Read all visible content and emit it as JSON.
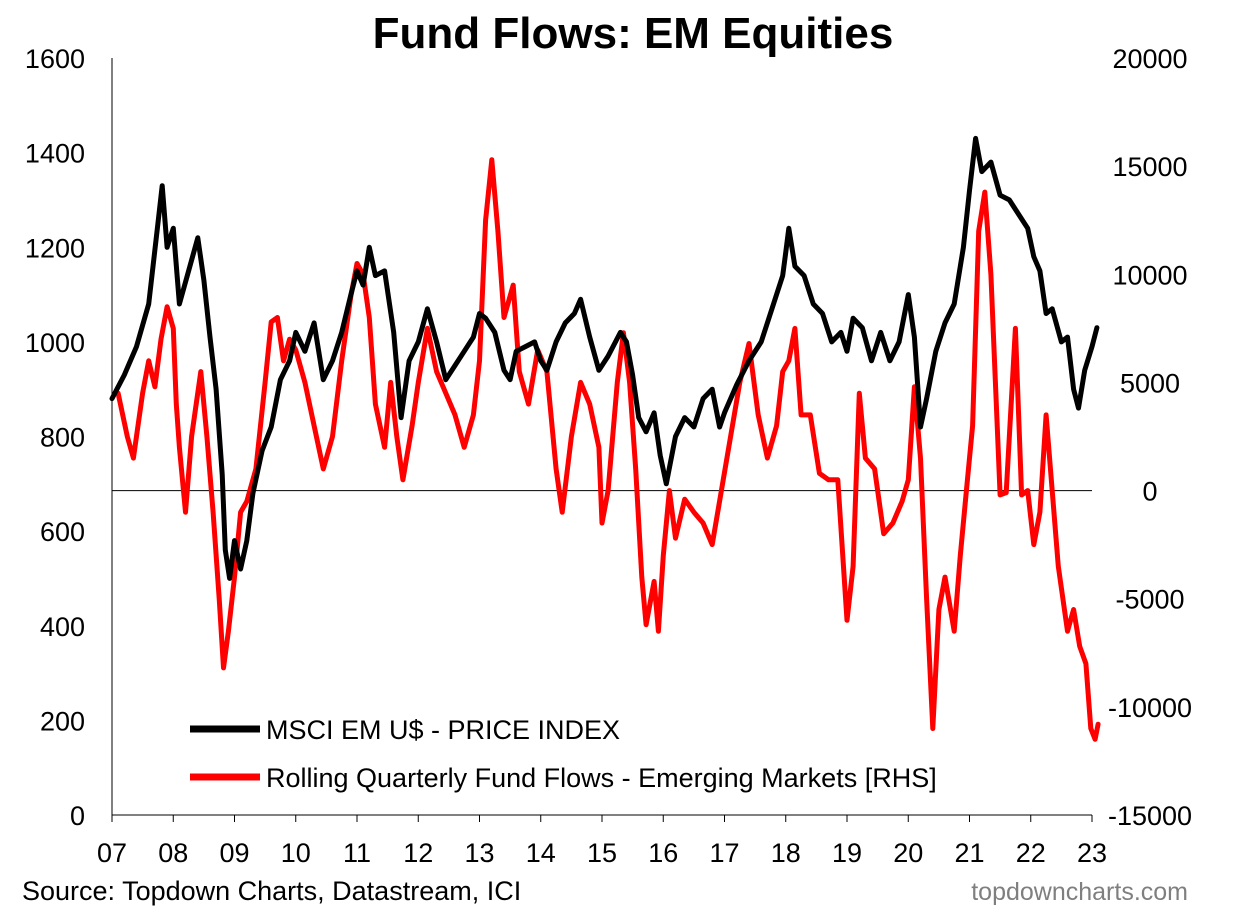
{
  "chart_data": {
    "type": "line",
    "title": "Fund Flows: EM Equities",
    "x_tick_labels": [
      "07",
      "08",
      "09",
      "10",
      "11",
      "12",
      "13",
      "14",
      "15",
      "16",
      "17",
      "18",
      "19",
      "20",
      "21",
      "22",
      "23"
    ],
    "x_range": [
      2007,
      2023
    ],
    "left_axis": {
      "ylim": [
        0,
        1600
      ],
      "ticks": [
        "0",
        "200",
        "400",
        "600",
        "800",
        "1000",
        "1200",
        "1400",
        "1600"
      ]
    },
    "right_axis": {
      "ylim": [
        -15000,
        20000
      ],
      "ticks": [
        "-15000",
        "-10000",
        "-5000",
        "0",
        "5000",
        "10000",
        "15000",
        "20000"
      ]
    },
    "zero_line_rhs": 0,
    "legend": {
      "placement": "bottom-left"
    },
    "series": [
      {
        "name": "MSCI EM U$ - PRICE INDEX",
        "axis": "left",
        "color": "#000000",
        "points": [
          [
            2007.0,
            880
          ],
          [
            2007.2,
            930
          ],
          [
            2007.4,
            990
          ],
          [
            2007.6,
            1080
          ],
          [
            2007.75,
            1250
          ],
          [
            2007.82,
            1330
          ],
          [
            2007.9,
            1200
          ],
          [
            2008.0,
            1240
          ],
          [
            2008.1,
            1080
          ],
          [
            2008.25,
            1150
          ],
          [
            2008.4,
            1220
          ],
          [
            2008.5,
            1130
          ],
          [
            2008.6,
            1010
          ],
          [
            2008.7,
            900
          ],
          [
            2008.8,
            720
          ],
          [
            2008.85,
            560
          ],
          [
            2008.92,
            500
          ],
          [
            2009.0,
            580
          ],
          [
            2009.1,
            520
          ],
          [
            2009.2,
            580
          ],
          [
            2009.3,
            680
          ],
          [
            2009.45,
            770
          ],
          [
            2009.6,
            820
          ],
          [
            2009.75,
            920
          ],
          [
            2009.9,
            960
          ],
          [
            2010.0,
            1020
          ],
          [
            2010.15,
            980
          ],
          [
            2010.3,
            1040
          ],
          [
            2010.45,
            920
          ],
          [
            2010.6,
            960
          ],
          [
            2010.75,
            1020
          ],
          [
            2010.9,
            1100
          ],
          [
            2011.0,
            1150
          ],
          [
            2011.1,
            1120
          ],
          [
            2011.2,
            1200
          ],
          [
            2011.3,
            1140
          ],
          [
            2011.45,
            1150
          ],
          [
            2011.6,
            1020
          ],
          [
            2011.72,
            840
          ],
          [
            2011.85,
            960
          ],
          [
            2012.0,
            1000
          ],
          [
            2012.15,
            1070
          ],
          [
            2012.3,
            1000
          ],
          [
            2012.45,
            920
          ],
          [
            2012.6,
            950
          ],
          [
            2012.75,
            980
          ],
          [
            2012.9,
            1010
          ],
          [
            2013.0,
            1060
          ],
          [
            2013.1,
            1050
          ],
          [
            2013.25,
            1020
          ],
          [
            2013.4,
            940
          ],
          [
            2013.5,
            920
          ],
          [
            2013.6,
            980
          ],
          [
            2013.75,
            990
          ],
          [
            2013.9,
            1000
          ],
          [
            2014.0,
            960
          ],
          [
            2014.1,
            940
          ],
          [
            2014.25,
            1000
          ],
          [
            2014.4,
            1040
          ],
          [
            2014.55,
            1060
          ],
          [
            2014.65,
            1090
          ],
          [
            2014.8,
            1010
          ],
          [
            2014.95,
            940
          ],
          [
            2015.1,
            970
          ],
          [
            2015.3,
            1020
          ],
          [
            2015.4,
            1000
          ],
          [
            2015.5,
            930
          ],
          [
            2015.6,
            840
          ],
          [
            2015.72,
            810
          ],
          [
            2015.85,
            850
          ],
          [
            2015.95,
            760
          ],
          [
            2016.05,
            700
          ],
          [
            2016.2,
            800
          ],
          [
            2016.35,
            840
          ],
          [
            2016.5,
            820
          ],
          [
            2016.65,
            880
          ],
          [
            2016.8,
            900
          ],
          [
            2016.92,
            820
          ],
          [
            2017.0,
            850
          ],
          [
            2017.2,
            910
          ],
          [
            2017.4,
            960
          ],
          [
            2017.6,
            1000
          ],
          [
            2017.8,
            1080
          ],
          [
            2017.95,
            1140
          ],
          [
            2018.0,
            1190
          ],
          [
            2018.05,
            1240
          ],
          [
            2018.15,
            1160
          ],
          [
            2018.3,
            1140
          ],
          [
            2018.45,
            1080
          ],
          [
            2018.6,
            1060
          ],
          [
            2018.75,
            1000
          ],
          [
            2018.9,
            1020
          ],
          [
            2019.0,
            980
          ],
          [
            2019.1,
            1050
          ],
          [
            2019.25,
            1030
          ],
          [
            2019.4,
            960
          ],
          [
            2019.55,
            1020
          ],
          [
            2019.7,
            960
          ],
          [
            2019.85,
            1000
          ],
          [
            2020.0,
            1100
          ],
          [
            2020.1,
            1010
          ],
          [
            2020.2,
            820
          ],
          [
            2020.3,
            880
          ],
          [
            2020.45,
            980
          ],
          [
            2020.6,
            1040
          ],
          [
            2020.75,
            1080
          ],
          [
            2020.9,
            1200
          ],
          [
            2021.0,
            1320
          ],
          [
            2021.1,
            1430
          ],
          [
            2021.2,
            1360
          ],
          [
            2021.35,
            1380
          ],
          [
            2021.5,
            1310
          ],
          [
            2021.65,
            1300
          ],
          [
            2021.8,
            1270
          ],
          [
            2021.95,
            1240
          ],
          [
            2022.05,
            1180
          ],
          [
            2022.15,
            1150
          ],
          [
            2022.25,
            1060
          ],
          [
            2022.35,
            1070
          ],
          [
            2022.5,
            1000
          ],
          [
            2022.6,
            1010
          ],
          [
            2022.7,
            900
          ],
          [
            2022.78,
            860
          ],
          [
            2022.88,
            940
          ],
          [
            2023.0,
            990
          ],
          [
            2023.08,
            1030
          ]
        ]
      },
      {
        "name": "Rolling Quarterly Fund Flows - Emerging Markets [RHS]",
        "axis": "right",
        "color": "#ff0000",
        "points": [
          [
            2007.1,
            4500
          ],
          [
            2007.25,
            2500
          ],
          [
            2007.35,
            1500
          ],
          [
            2007.5,
            4500
          ],
          [
            2007.6,
            6000
          ],
          [
            2007.7,
            4800
          ],
          [
            2007.8,
            7000
          ],
          [
            2007.9,
            8500
          ],
          [
            2008.0,
            7500
          ],
          [
            2008.05,
            4000
          ],
          [
            2008.1,
            2000
          ],
          [
            2008.2,
            -1000
          ],
          [
            2008.3,
            2500
          ],
          [
            2008.45,
            5500
          ],
          [
            2008.55,
            2500
          ],
          [
            2008.65,
            -1000
          ],
          [
            2008.75,
            -5000
          ],
          [
            2008.82,
            -8200
          ],
          [
            2008.9,
            -6500
          ],
          [
            2009.0,
            -4000
          ],
          [
            2009.1,
            -1000
          ],
          [
            2009.2,
            -500
          ],
          [
            2009.35,
            1000
          ],
          [
            2009.5,
            5000
          ],
          [
            2009.6,
            7800
          ],
          [
            2009.7,
            8000
          ],
          [
            2009.8,
            6000
          ],
          [
            2009.9,
            7000
          ],
          [
            2010.0,
            6500
          ],
          [
            2010.15,
            5000
          ],
          [
            2010.3,
            3000
          ],
          [
            2010.45,
            1000
          ],
          [
            2010.6,
            2500
          ],
          [
            2010.75,
            6000
          ],
          [
            2010.9,
            9000
          ],
          [
            2011.0,
            10500
          ],
          [
            2011.1,
            10000
          ],
          [
            2011.2,
            8000
          ],
          [
            2011.3,
            4000
          ],
          [
            2011.45,
            2000
          ],
          [
            2011.55,
            5000
          ],
          [
            2011.65,
            2500
          ],
          [
            2011.75,
            500
          ],
          [
            2011.9,
            3000
          ],
          [
            2012.0,
            5000
          ],
          [
            2012.15,
            7500
          ],
          [
            2012.3,
            5500
          ],
          [
            2012.45,
            4500
          ],
          [
            2012.6,
            3500
          ],
          [
            2012.75,
            2000
          ],
          [
            2012.9,
            3500
          ],
          [
            2013.0,
            6000
          ],
          [
            2013.1,
            12500
          ],
          [
            2013.2,
            15300
          ],
          [
            2013.3,
            12000
          ],
          [
            2013.4,
            8000
          ],
          [
            2013.55,
            9500
          ],
          [
            2013.65,
            5500
          ],
          [
            2013.8,
            4000
          ],
          [
            2013.95,
            6500
          ],
          [
            2014.1,
            5500
          ],
          [
            2014.25,
            1000
          ],
          [
            2014.35,
            -1000
          ],
          [
            2014.5,
            2500
          ],
          [
            2014.65,
            5000
          ],
          [
            2014.8,
            4000
          ],
          [
            2014.95,
            2000
          ],
          [
            2015.0,
            -1500
          ],
          [
            2015.1,
            0
          ],
          [
            2015.25,
            5000
          ],
          [
            2015.35,
            7300
          ],
          [
            2015.45,
            5000
          ],
          [
            2015.55,
            1000
          ],
          [
            2015.65,
            -4000
          ],
          [
            2015.72,
            -6200
          ],
          [
            2015.85,
            -4200
          ],
          [
            2015.92,
            -6500
          ],
          [
            2016.0,
            -3000
          ],
          [
            2016.1,
            0
          ],
          [
            2016.2,
            -2200
          ],
          [
            2016.35,
            -400
          ],
          [
            2016.5,
            -1000
          ],
          [
            2016.65,
            -1500
          ],
          [
            2016.8,
            -2500
          ],
          [
            2016.95,
            0
          ],
          [
            2017.1,
            2500
          ],
          [
            2017.25,
            5000
          ],
          [
            2017.4,
            6800
          ],
          [
            2017.55,
            3500
          ],
          [
            2017.7,
            1500
          ],
          [
            2017.85,
            3000
          ],
          [
            2017.95,
            5500
          ],
          [
            2018.05,
            6000
          ],
          [
            2018.15,
            7500
          ],
          [
            2018.25,
            3500
          ],
          [
            2018.4,
            3500
          ],
          [
            2018.55,
            800
          ],
          [
            2018.7,
            500
          ],
          [
            2018.85,
            500
          ],
          [
            2019.0,
            -6000
          ],
          [
            2019.1,
            -3500
          ],
          [
            2019.2,
            4500
          ],
          [
            2019.3,
            1500
          ],
          [
            2019.45,
            1000
          ],
          [
            2019.6,
            -2000
          ],
          [
            2019.75,
            -1500
          ],
          [
            2019.9,
            -500
          ],
          [
            2020.0,
            500
          ],
          [
            2020.1,
            4800
          ],
          [
            2020.2,
            1500
          ],
          [
            2020.3,
            -5000
          ],
          [
            2020.4,
            -11000
          ],
          [
            2020.5,
            -5500
          ],
          [
            2020.6,
            -4000
          ],
          [
            2020.75,
            -6500
          ],
          [
            2020.85,
            -3000
          ],
          [
            2020.95,
            0
          ],
          [
            2021.05,
            3000
          ],
          [
            2021.15,
            12000
          ],
          [
            2021.25,
            13800
          ],
          [
            2021.35,
            10000
          ],
          [
            2021.5,
            -200
          ],
          [
            2021.6,
            -100
          ],
          [
            2021.75,
            7500
          ],
          [
            2021.85,
            -200
          ],
          [
            2021.95,
            0
          ],
          [
            2022.05,
            -2500
          ],
          [
            2022.15,
            -1000
          ],
          [
            2022.25,
            3500
          ],
          [
            2022.35,
            0
          ],
          [
            2022.45,
            -3500
          ],
          [
            2022.6,
            -6500
          ],
          [
            2022.7,
            -5500
          ],
          [
            2022.8,
            -7200
          ],
          [
            2022.9,
            -8000
          ],
          [
            2022.98,
            -11000
          ],
          [
            2023.05,
            -11500
          ],
          [
            2023.1,
            -10800
          ]
        ]
      }
    ]
  },
  "footer": {
    "source": "Source: Topdown Charts, Datastream, ICI",
    "watermark": "topdowncharts.com"
  }
}
